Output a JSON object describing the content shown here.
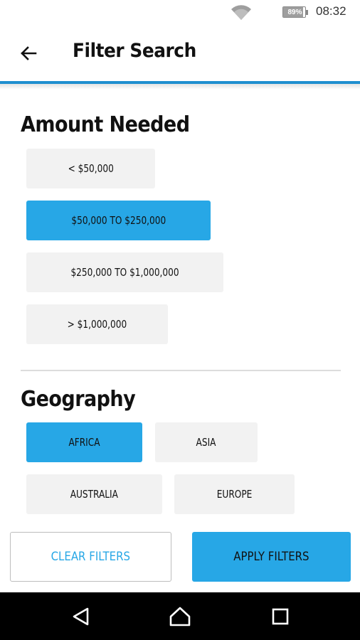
{
  "status_bar": {
    "battery_percent": "89%",
    "battery_level": 0.89,
    "time": "08:32"
  },
  "header": {
    "title": "Filter Search",
    "back_icon": "arrow-left-icon"
  },
  "amount_section": {
    "title": "Amount Needed",
    "options": [
      {
        "label": "< $50,000",
        "selected": false
      },
      {
        "label": "$50,000 TO $250,000",
        "selected": true
      },
      {
        "label": "$250,000 TO $1,000,000",
        "selected": false
      },
      {
        "label": "> $1,000,000",
        "selected": false
      }
    ]
  },
  "geography_section": {
    "title": "Geography",
    "options": [
      {
        "label": "AFRICA",
        "selected": true
      },
      {
        "label": "ASIA",
        "selected": false
      },
      {
        "label": "AUSTRALIA",
        "selected": false
      },
      {
        "label": "EUROPE",
        "selected": false
      }
    ]
  },
  "actions": {
    "clear_label": "CLEAR FILTERS",
    "apply_label": "APPLY FILTERS"
  },
  "nav": {
    "back": "triangle-back-icon",
    "home": "home-icon",
    "recents": "square-recents-icon"
  },
  "colors": {
    "accent": "#27a7e6",
    "header_line": "#1f8fcf",
    "chip_bg": "#f2f2f2"
  }
}
